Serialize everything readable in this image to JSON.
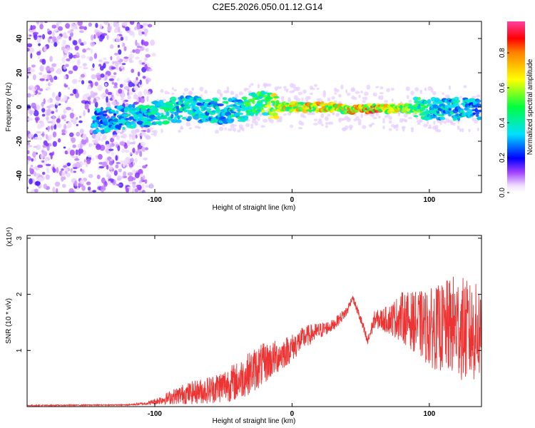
{
  "title": "C2E5.2026.050.01.12.G14",
  "chart_data": [
    {
      "type": "heatmap",
      "name": "spectrogram",
      "xlabel": "Height of straight line (km)",
      "ylabel": "Frequency (Hz)",
      "xlim": [
        -193,
        138
      ],
      "ylim": [
        -50,
        50
      ],
      "xticks": [
        -100,
        0,
        100
      ],
      "yticks": [
        -40,
        -20,
        0,
        20,
        40
      ],
      "noise_region_x": [
        -193,
        -105
      ],
      "signal_track": [
        {
          "x": -140,
          "y": -8,
          "a": 0.35
        },
        {
          "x": -120,
          "y": -6,
          "a": 0.4
        },
        {
          "x": -100,
          "y": -4,
          "a": 0.45
        },
        {
          "x": -80,
          "y": -1,
          "a": 0.45
        },
        {
          "x": -60,
          "y": -2,
          "a": 0.4
        },
        {
          "x": -40,
          "y": -2,
          "a": 0.45
        },
        {
          "x": -25,
          "y": 2,
          "a": 0.55
        },
        {
          "x": -10,
          "y": 0,
          "a": 0.7
        },
        {
          "x": 0,
          "y": 0,
          "a": 0.75
        },
        {
          "x": 20,
          "y": 0,
          "a": 0.8
        },
        {
          "x": 40,
          "y": -1,
          "a": 0.75
        },
        {
          "x": 60,
          "y": -1,
          "a": 0.9
        },
        {
          "x": 80,
          "y": -1,
          "a": 0.7
        },
        {
          "x": 100,
          "y": -1,
          "a": 0.45
        },
        {
          "x": 120,
          "y": -1,
          "a": 0.4
        },
        {
          "x": 137,
          "y": -1,
          "a": 0.35
        }
      ],
      "colorbar": {
        "label": "Normalized spectral amplitude",
        "range": [
          0,
          0.98
        ],
        "ticks": [
          0.0,
          0.2,
          0.4,
          0.6,
          0.8
        ],
        "tick_labels": [
          "0.0",
          "0.2",
          "0.4",
          "0.6",
          "0.8"
        ]
      }
    },
    {
      "type": "line",
      "name": "snr",
      "xlabel": "Height of straight line (km)",
      "ylabel": "SNR (10 * v/v)",
      "y_multiplier": "(x10⁴)",
      "xlim": [
        -193,
        138
      ],
      "ylim": [
        0,
        3.05
      ],
      "xticks": [
        -100,
        0,
        100
      ],
      "yticks": [
        1,
        2,
        3
      ],
      "line_color": "#ee3333",
      "series": [
        {
          "name": "SNR",
          "envelope": [
            {
              "x": -193,
              "mean": 0.02,
              "amp": 0.01
            },
            {
              "x": -120,
              "mean": 0.03,
              "amp": 0.01
            },
            {
              "x": -105,
              "mean": 0.06,
              "amp": 0.03
            },
            {
              "x": -95,
              "mean": 0.12,
              "amp": 0.08
            },
            {
              "x": -80,
              "mean": 0.22,
              "amp": 0.18
            },
            {
              "x": -60,
              "mean": 0.3,
              "amp": 0.25
            },
            {
              "x": -40,
              "mean": 0.45,
              "amp": 0.35
            },
            {
              "x": -25,
              "mean": 0.7,
              "amp": 0.4
            },
            {
              "x": -10,
              "mean": 0.9,
              "amp": 0.3
            },
            {
              "x": 0,
              "mean": 1.05,
              "amp": 0.25
            },
            {
              "x": 10,
              "mean": 1.25,
              "amp": 0.2
            },
            {
              "x": 20,
              "mean": 1.35,
              "amp": 0.15
            },
            {
              "x": 30,
              "mean": 1.45,
              "amp": 0.1
            },
            {
              "x": 40,
              "mean": 1.7,
              "amp": 0.1
            },
            {
              "x": 44,
              "mean": 1.95,
              "amp": 0.05
            },
            {
              "x": 50,
              "mean": 1.55,
              "amp": 0.1
            },
            {
              "x": 55,
              "mean": 1.15,
              "amp": 0.1
            },
            {
              "x": 60,
              "mean": 1.55,
              "amp": 0.15
            },
            {
              "x": 70,
              "mean": 1.55,
              "amp": 0.25
            },
            {
              "x": 80,
              "mean": 1.6,
              "amp": 0.45
            },
            {
              "x": 90,
              "mean": 1.5,
              "amp": 0.55
            },
            {
              "x": 100,
              "mean": 1.4,
              "amp": 0.7
            },
            {
              "x": 110,
              "mean": 1.4,
              "amp": 0.8
            },
            {
              "x": 120,
              "mean": 1.45,
              "amp": 0.95
            },
            {
              "x": 130,
              "mean": 1.3,
              "amp": 0.9
            },
            {
              "x": 138,
              "mean": 1.35,
              "amp": 0.85
            }
          ]
        }
      ]
    }
  ]
}
